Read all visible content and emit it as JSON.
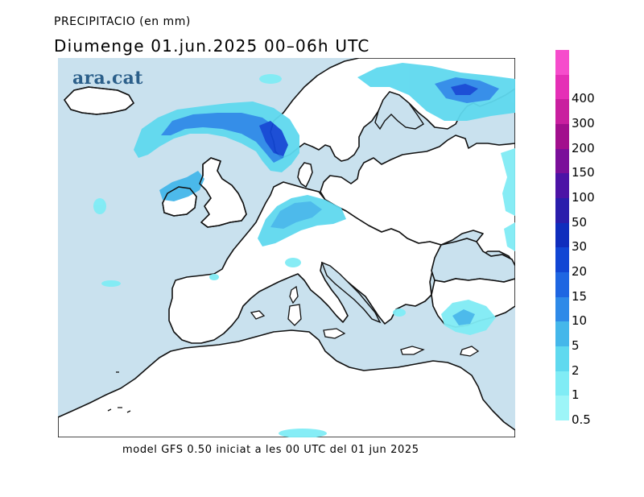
{
  "header": {
    "variable": "PRECIPITACIO (en mm)",
    "date_line": "Diumenge  01.jun.2025  00–06h  UTC"
  },
  "brand": {
    "logo_text": "ara.cat"
  },
  "footer": {
    "model_info": "model GFS 0.50 iniciat a les 00 UTC del 01 jun 2025"
  },
  "legend": {
    "classes": [
      {
        "label": "0.5",
        "color": "#9df5f8"
      },
      {
        "label": "1",
        "color": "#80ecf5"
      },
      {
        "label": "2",
        "color": "#5fd9ef"
      },
      {
        "label": "5",
        "color": "#44b7ea"
      },
      {
        "label": "10",
        "color": "#2e8ae8"
      },
      {
        "label": "15",
        "color": "#1e66e2"
      },
      {
        "label": "20",
        "color": "#1146d4"
      },
      {
        "label": "30",
        "color": "#0f2dbd"
      },
      {
        "label": "50",
        "color": "#2a1eac"
      },
      {
        "label": "100",
        "color": "#4c13a6"
      },
      {
        "label": "150",
        "color": "#7a0f9a"
      },
      {
        "label": "200",
        "color": "#a20f8d"
      },
      {
        "label": "300",
        "color": "#c91f9f"
      },
      {
        "label": "400",
        "color": "#e52fb6"
      },
      {
        "label": "",
        "color": "#f64ccc"
      }
    ]
  },
  "map": {
    "sea_color": "#c9e1ee",
    "land_color": "#ffffff",
    "coast_color": "#111111"
  }
}
